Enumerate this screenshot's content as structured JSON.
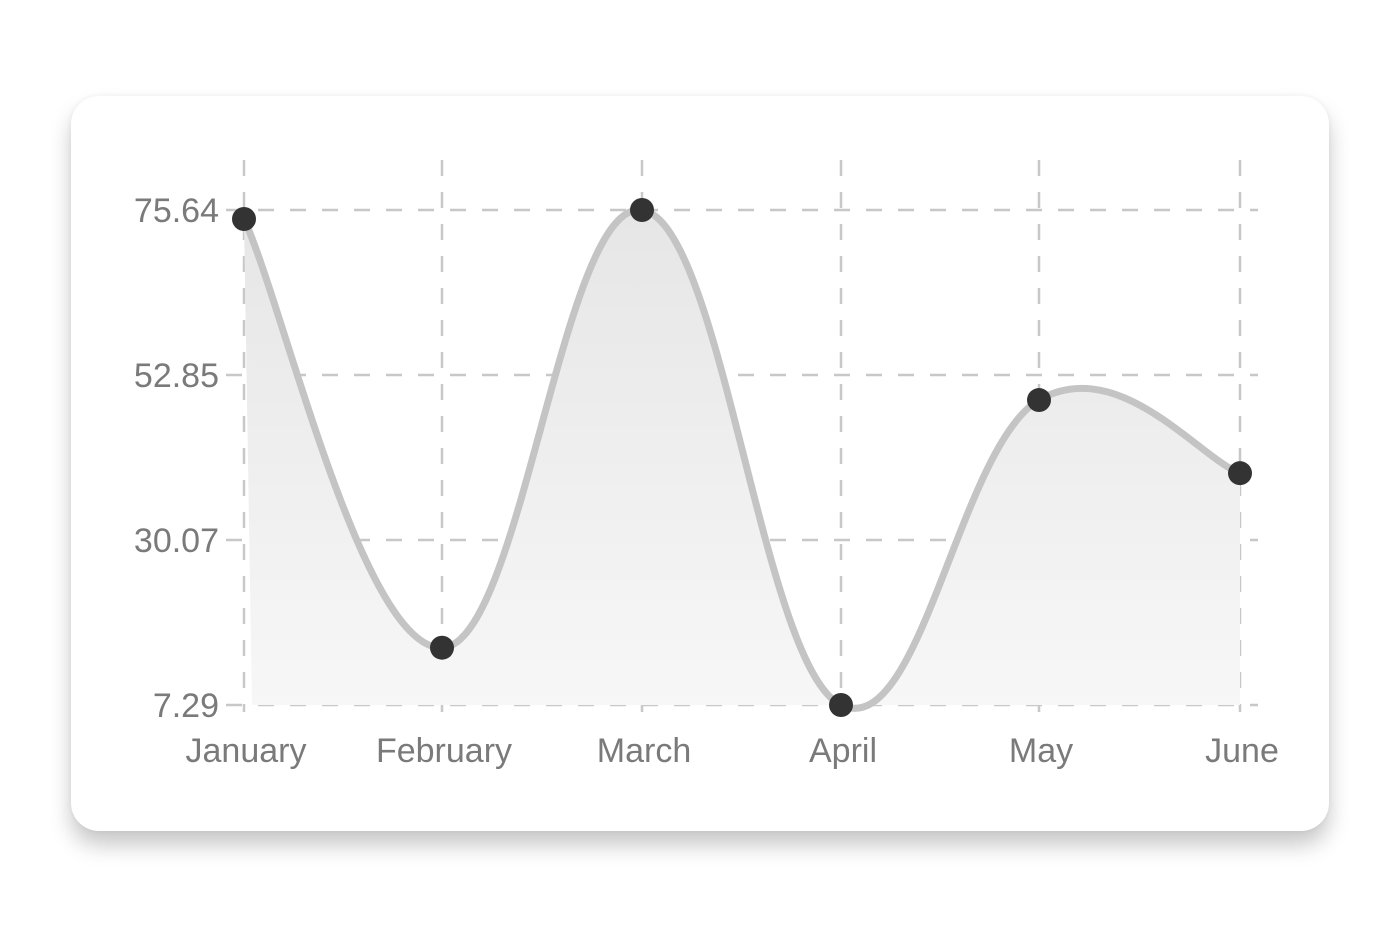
{
  "chart_data": {
    "type": "area",
    "title": "",
    "xlabel": "",
    "ylabel": "",
    "categories": [
      "January",
      "February",
      "March",
      "April",
      "May",
      "June"
    ],
    "values": [
      74.4,
      15.2,
      75.64,
      7.29,
      49.4,
      39.3
    ],
    "y_ticks": [
      "7.29",
      "30.07",
      "52.85",
      "75.64"
    ],
    "ylim": [
      7.29,
      75.64
    ],
    "grid": true,
    "grid_style": "dashed",
    "smooth": true,
    "colors": {
      "line": "#c4c4c4",
      "point": "#333333",
      "fill_top": "#e6e6e6",
      "fill_bottom": "#f7f7f7",
      "grid": "#c8c8c8",
      "label": "#7a7a7a"
    }
  }
}
